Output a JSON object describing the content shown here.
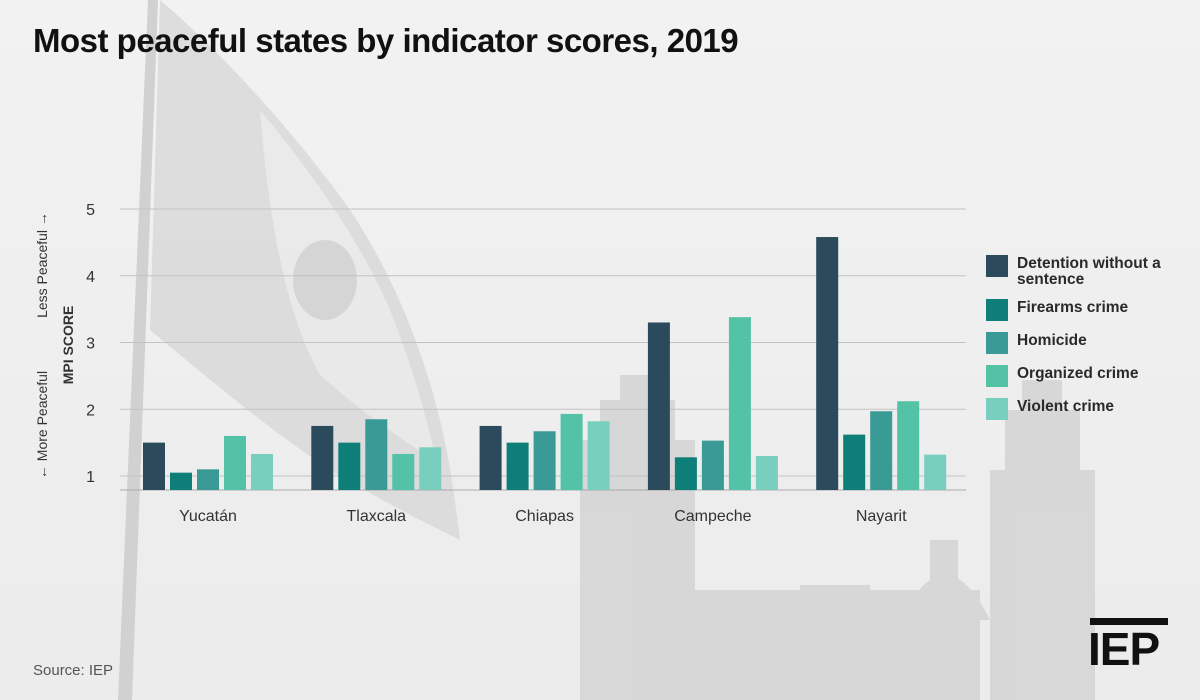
{
  "title": "Most peaceful states by indicator scores, 2019",
  "source": "Source: IEP",
  "logo_text": "IEP",
  "chart_data": {
    "type": "bar",
    "title": "Most peaceful states by indicator scores, 2019",
    "xlabel": "",
    "ylabel": "MPI SCORE",
    "ylabel_less": "Less Peaceful →",
    "ylabel_more": "← More Peaceful",
    "ylim": [
      1,
      5
    ],
    "yticks": [
      1,
      2,
      3,
      4,
      5
    ],
    "grid": true,
    "legend_position": "right",
    "categories": [
      "Yucatán",
      "Tlaxcala",
      "Chiapas",
      "Campeche",
      "Nayarit"
    ],
    "series": [
      {
        "name": "Detention without a sentence",
        "color": "#2b4a5c",
        "values": [
          1.5,
          1.75,
          1.75,
          3.3,
          4.58
        ]
      },
      {
        "name": "Firearms crime",
        "color": "#0e7f78",
        "values": [
          1.05,
          1.5,
          1.5,
          1.28,
          1.62
        ]
      },
      {
        "name": "Homicide",
        "color": "#3a9a96",
        "values": [
          1.1,
          1.85,
          1.67,
          1.53,
          1.97
        ]
      },
      {
        "name": "Organized crime",
        "color": "#54c2a6",
        "values": [
          1.6,
          1.33,
          1.93,
          3.38,
          2.12
        ]
      },
      {
        "name": "Violent crime",
        "color": "#78cfbd",
        "values": [
          1.33,
          1.43,
          1.82,
          1.3,
          1.32
        ]
      }
    ]
  }
}
